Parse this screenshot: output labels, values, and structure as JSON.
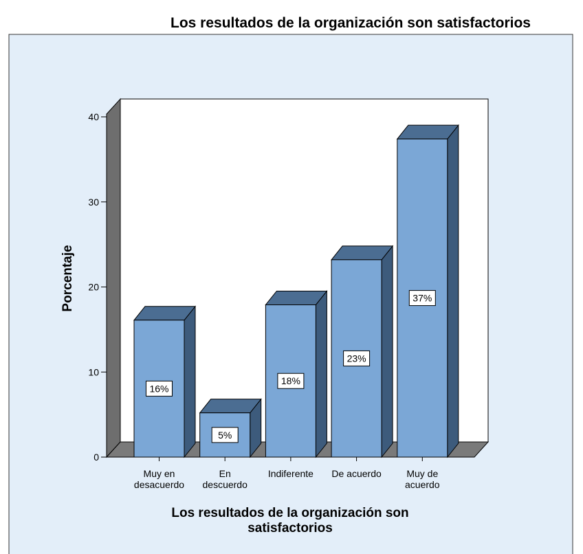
{
  "chart_data": {
    "type": "bar3d",
    "title": "Los resultados de la organización son satisfactorios",
    "x_label": "Los resultados de la organización son\nsatisfactorios",
    "y_label": "Porcentaje",
    "categories": [
      "Muy en\ndesacuerdo",
      "En\ndescuerdo",
      "Indiferente",
      "De acuerdo",
      "Muy de\nacuerdo"
    ],
    "values": [
      16.1,
      5.2,
      17.9,
      23.2,
      37.4
    ],
    "value_labels": [
      "16%",
      "5%",
      "18%",
      "23%",
      "37%"
    ],
    "color": "#7ba7d6",
    "ylim": [
      0,
      40
    ],
    "yticks": [
      0,
      10,
      20,
      30,
      40
    ]
  }
}
